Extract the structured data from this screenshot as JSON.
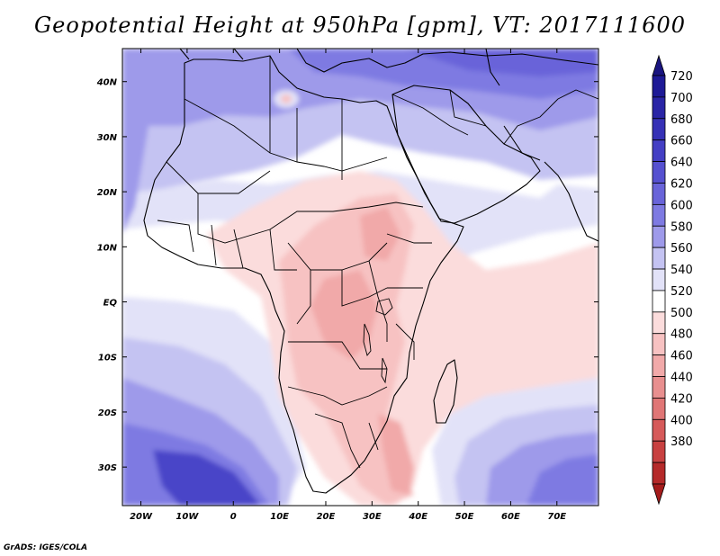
{
  "title": "Geopotential Height at 950hPa [gpm], VT: 2017111600",
  "credit": "GrADS: IGES/COLA",
  "map": {
    "lon_range": [
      -24,
      79
    ],
    "lat_range": [
      -37,
      46
    ],
    "lon_ticks": [
      {
        "value": -20,
        "label": "20W"
      },
      {
        "value": -10,
        "label": "10W"
      },
      {
        "value": 0,
        "label": "0"
      },
      {
        "value": 10,
        "label": "10E"
      },
      {
        "value": 20,
        "label": "20E"
      },
      {
        "value": 30,
        "label": "30E"
      },
      {
        "value": 40,
        "label": "40E"
      },
      {
        "value": 50,
        "label": "50E"
      },
      {
        "value": 60,
        "label": "60E"
      },
      {
        "value": 70,
        "label": "70E"
      }
    ],
    "lat_ticks": [
      {
        "value": 40,
        "label": "40N"
      },
      {
        "value": 30,
        "label": "30N"
      },
      {
        "value": 20,
        "label": "20N"
      },
      {
        "value": 10,
        "label": "10N"
      },
      {
        "value": 0,
        "label": "EQ"
      },
      {
        "value": -10,
        "label": "10S"
      },
      {
        "value": -20,
        "label": "20S"
      },
      {
        "value": -30,
        "label": "30S"
      }
    ]
  },
  "colorbar": {
    "levels": [
      {
        "label": "720",
        "color": "#1e1a96"
      },
      {
        "label": "700",
        "color": "#2a25a6"
      },
      {
        "label": "680",
        "color": "#3631b6"
      },
      {
        "label": "660",
        "color": "#443fc4"
      },
      {
        "label": "640",
        "color": "#5651d0"
      },
      {
        "label": "620",
        "color": "#6964d9"
      },
      {
        "label": "600",
        "color": "#7e7ae2"
      },
      {
        "label": "580",
        "color": "#9e9aea"
      },
      {
        "label": "560",
        "color": "#c4c3f2"
      },
      {
        "label": "540",
        "color": "#e2e2f8"
      },
      {
        "label": "520",
        "color": "#ffffff"
      },
      {
        "label": "500",
        "color": "#fbdcdc"
      },
      {
        "label": "480",
        "color": "#f7c2c2"
      },
      {
        "label": "460",
        "color": "#f1a9a9"
      },
      {
        "label": "440",
        "color": "#e88f8f"
      },
      {
        "label": "420",
        "color": "#e07676"
      },
      {
        "label": "400",
        "color": "#d65a5a"
      },
      {
        "label": "380",
        "color": "#c84141"
      },
      {
        "label": "",
        "color": "#b52a2a"
      }
    ],
    "top_color": "#1a1580",
    "bottom_color": "#a51c1c"
  },
  "colors": {
    "deep_blue": "#4a45c8",
    "blue": "#7e7ae2",
    "mid_blue": "#9e9aea",
    "light_blue": "#c4c3f2",
    "pale_blue": "#e2e2f8",
    "pale_red": "#fbdcdc",
    "light_red": "#f7c2c2",
    "red": "#f1a9a9"
  }
}
